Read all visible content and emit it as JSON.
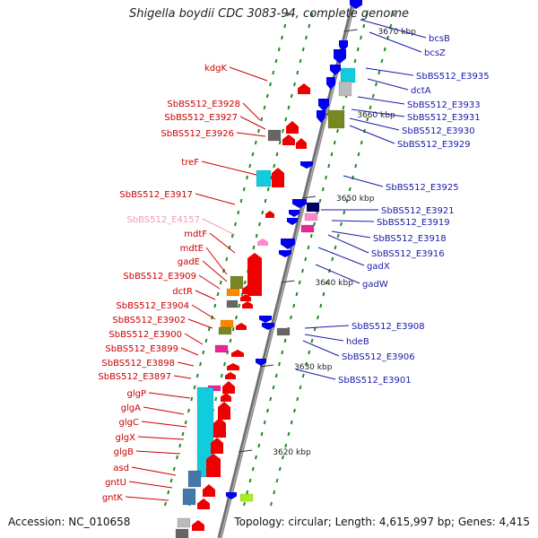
{
  "title": "Shigella boydii CDC 3083-94, complete genome",
  "accession": "Accession: NC_010658",
  "topology": "Topology: circular; Length: 4,615,997 bp; Genes: 4,415",
  "colors": {
    "left_label": "#cc0000",
    "right_label": "#1a1aaa",
    "pink_label": "#ee99bb",
    "red_gene": "#ee0000",
    "blue_gene": "#0000ee",
    "cyan_gene": "#11ccdd",
    "olive_gene": "#778822",
    "gray_gene": "#666666",
    "lightgray_gene": "#bbbbbb",
    "orange_gene": "#ff8800",
    "magenta_gene": "#ee2299",
    "pink_gene": "#ff88cc",
    "steelblue_gene": "#4477aa",
    "lime_gene": "#aaee22",
    "backbone": "#808080",
    "tick": "#228b22"
  },
  "ticks": [
    "3670 kbp",
    "3660 kbp",
    "3650 kbp",
    "3640 kbp",
    "3630 kbp",
    "3620 kbp"
  ],
  "left_labels": [
    {
      "text": "kdgK",
      "color": "left_label"
    },
    {
      "text": "SbBS512_E3928",
      "color": "left_label"
    },
    {
      "text": "SbBS512_E3927",
      "color": "left_label"
    },
    {
      "text": "SbBS512_E3926",
      "color": "left_label"
    },
    {
      "text": "treF",
      "color": "left_label"
    },
    {
      "text": "SbBS512_E3917",
      "color": "left_label"
    },
    {
      "text": "SbBS512_E4157",
      "color": "pink_label"
    },
    {
      "text": "mdtF",
      "color": "left_label"
    },
    {
      "text": "mdtE",
      "color": "left_label"
    },
    {
      "text": "gadE",
      "color": "left_label"
    },
    {
      "text": "SbBS512_E3909",
      "color": "left_label"
    },
    {
      "text": "dctR",
      "color": "left_label"
    },
    {
      "text": "SbBS512_E3904",
      "color": "left_label"
    },
    {
      "text": "SbBS512_E3902",
      "color": "left_label"
    },
    {
      "text": "SbBS512_E3900",
      "color": "left_label"
    },
    {
      "text": "SbBS512_E3899",
      "color": "left_label"
    },
    {
      "text": "SbBS512_E3898",
      "color": "left_label"
    },
    {
      "text": "SbBS512_E3897",
      "color": "left_label"
    },
    {
      "text": "glgP",
      "color": "left_label"
    },
    {
      "text": "glgA",
      "color": "left_label"
    },
    {
      "text": "glgC",
      "color": "left_label"
    },
    {
      "text": "glgX",
      "color": "left_label"
    },
    {
      "text": "glgB",
      "color": "left_label"
    },
    {
      "text": "asd",
      "color": "left_label"
    },
    {
      "text": "gntU",
      "color": "left_label"
    },
    {
      "text": "gntK",
      "color": "left_label"
    }
  ],
  "right_labels": [
    {
      "text": "bcsB"
    },
    {
      "text": "bcsZ"
    },
    {
      "text": "SbBS512_E3935"
    },
    {
      "text": "dctA"
    },
    {
      "text": "SbBS512_E3933"
    },
    {
      "text": "SbBS512_E3931"
    },
    {
      "text": "SbBS512_E3930"
    },
    {
      "text": "SbBS512_E3929"
    },
    {
      "text": "SbBS512_E3925"
    },
    {
      "text": "SbBS512_E3921"
    },
    {
      "text": "SbBS512_E3919"
    },
    {
      "text": "SbBS512_E3918"
    },
    {
      "text": "SbBS512_E3916"
    },
    {
      "text": "gadX"
    },
    {
      "text": "gadW"
    },
    {
      "text": "SbBS512_E3908"
    },
    {
      "text": "hdeB"
    },
    {
      "text": "SbBS512_E3906"
    },
    {
      "text": "SbBS512_E3901"
    }
  ]
}
